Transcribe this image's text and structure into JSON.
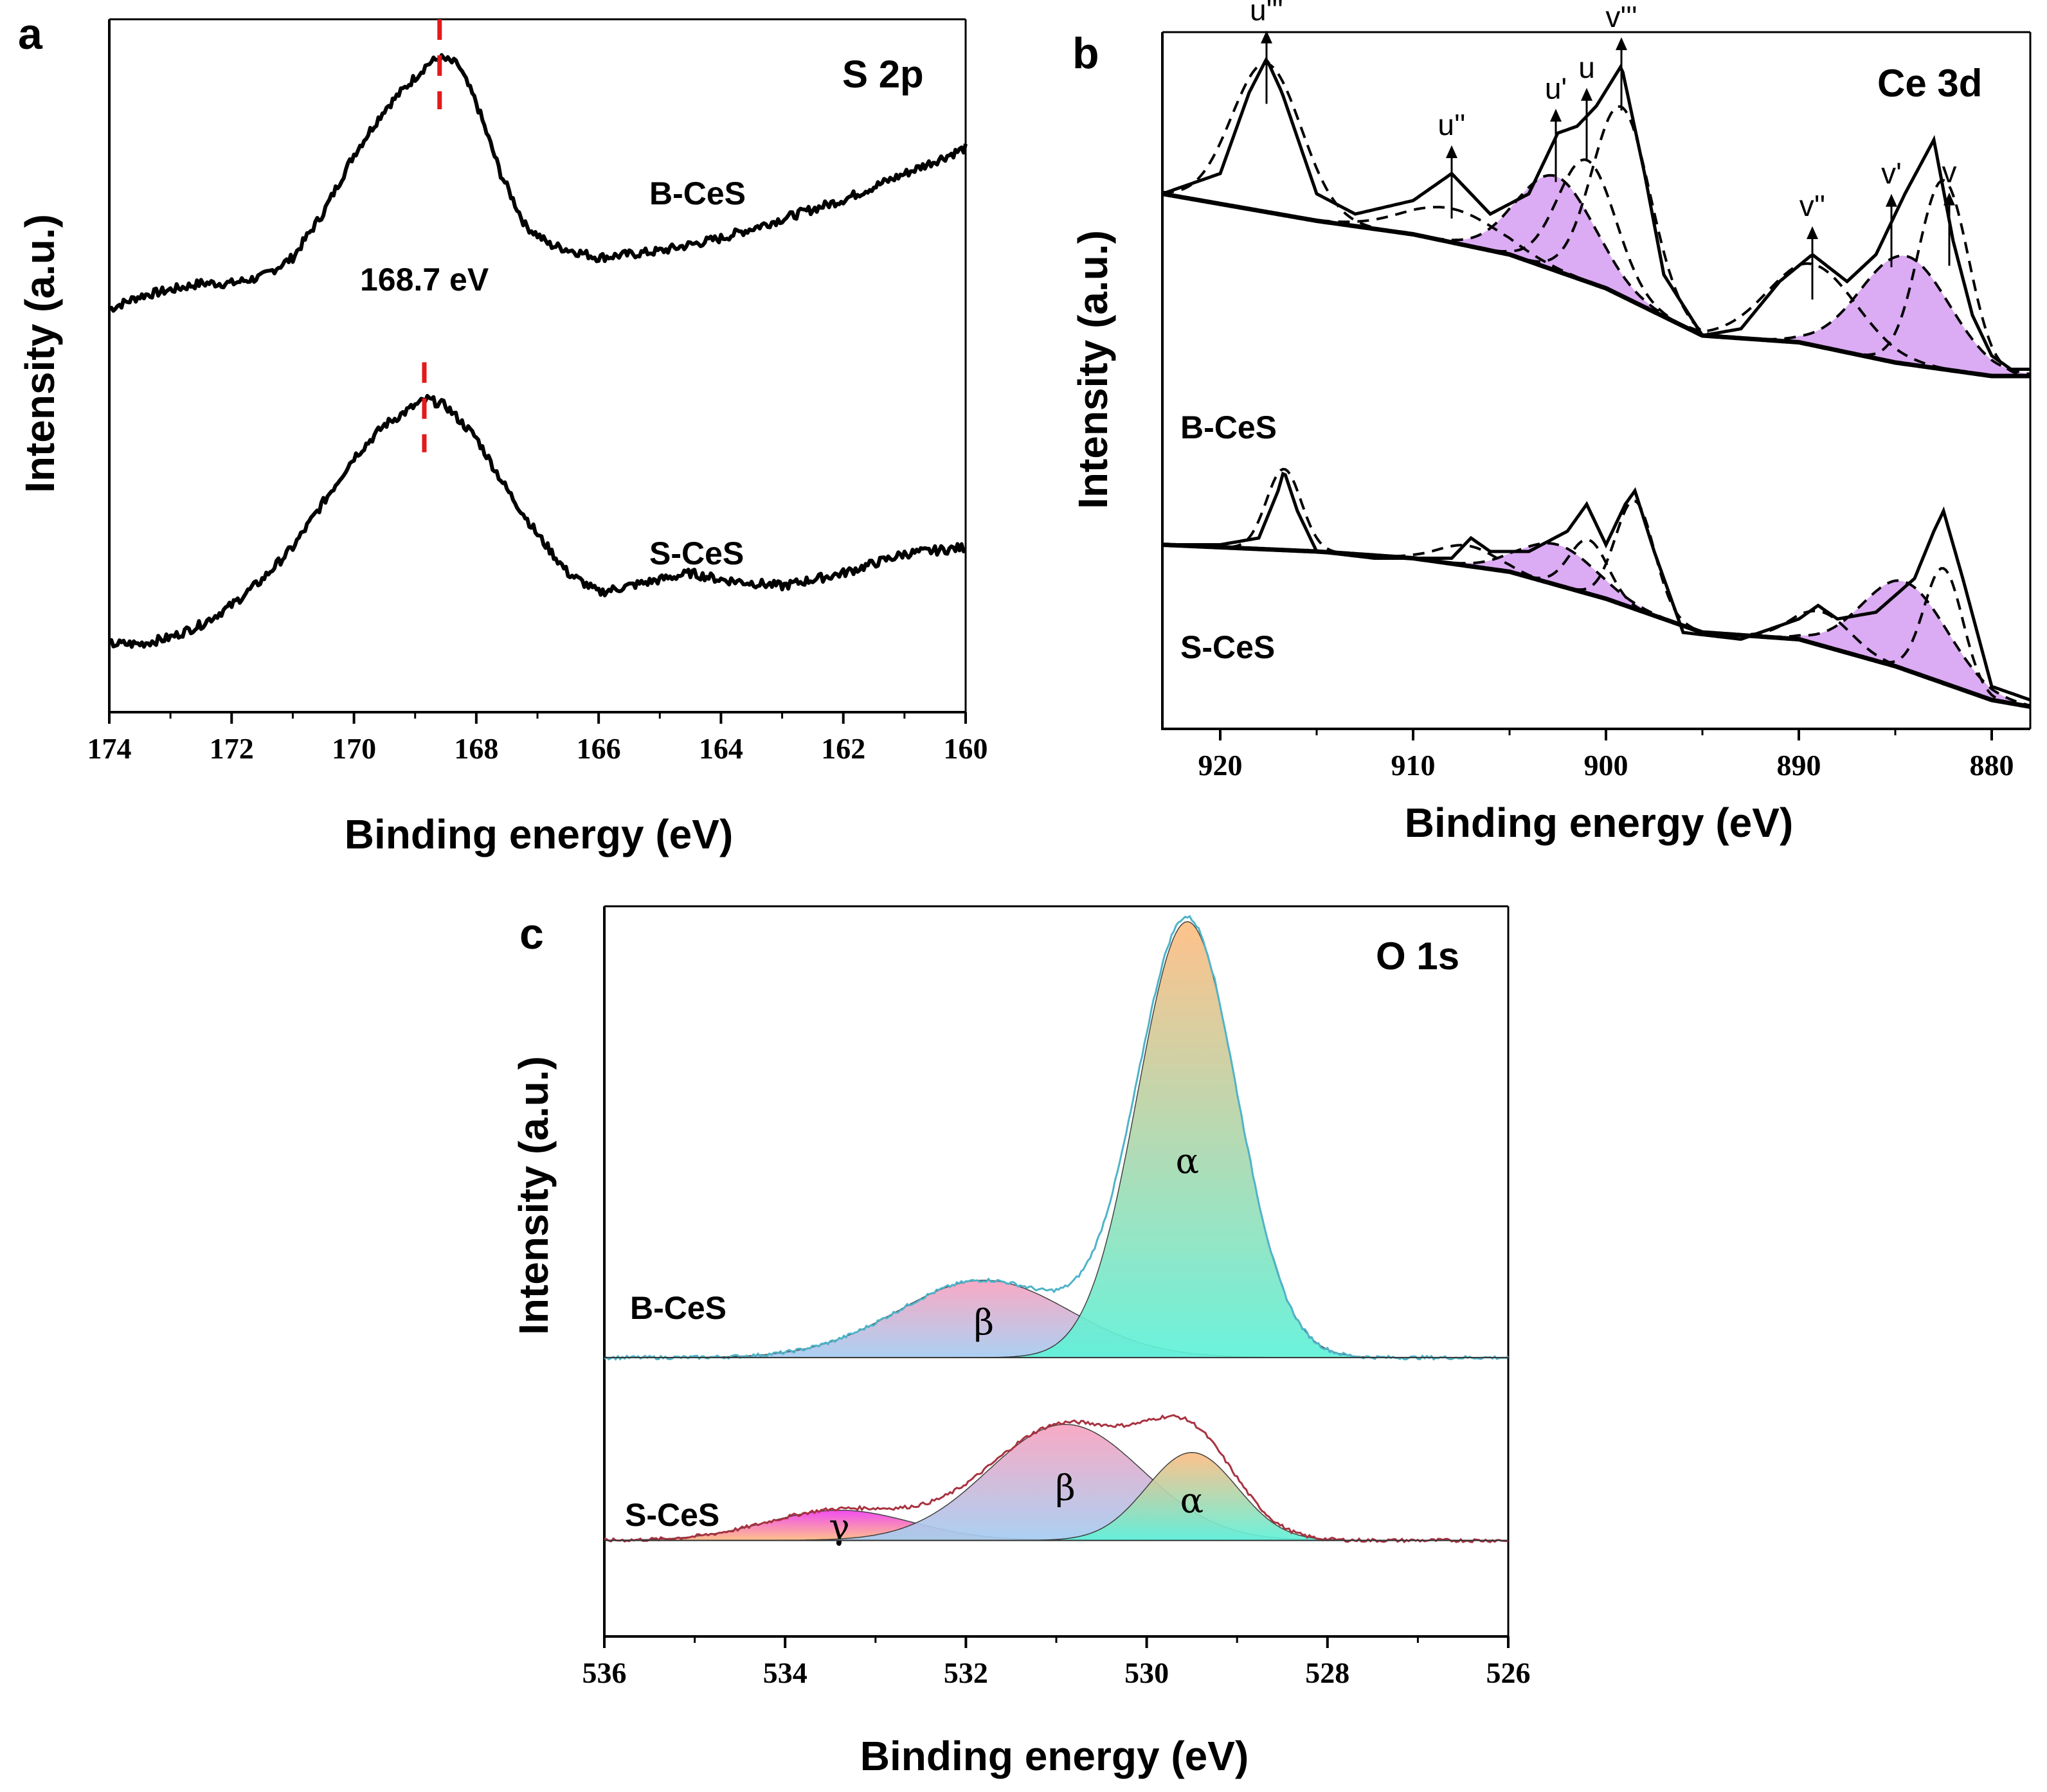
{
  "figure": {
    "panel_labels": [
      "a",
      "b",
      "c"
    ]
  },
  "chart_data": [
    {
      "type": "line",
      "panel": "a",
      "title": "S 2p",
      "xlabel": "Binding energy (eV)",
      "ylabel": "Intensity (a.u.)",
      "xlim": [
        174,
        160
      ],
      "xticks": [
        174,
        172,
        170,
        168,
        166,
        164,
        162,
        160
      ],
      "ylim": [
        0,
        100
      ],
      "annotation": {
        "text": "168.7 eV",
        "x": 168.7
      },
      "marker_color": "#e31a1c",
      "series": [
        {
          "name": "B-CeS",
          "label_x": 167.3,
          "label_y": 79,
          "marker_x": 168.6,
          "x": [
            174,
            173.5,
            173,
            172.5,
            172,
            171.5,
            171,
            170.5,
            170,
            169.5,
            169,
            168.8,
            168.6,
            168.3,
            168,
            167.6,
            167.2,
            166.8,
            166.4,
            166,
            165,
            164,
            163,
            162,
            161,
            160
          ],
          "y": [
            58,
            60,
            61,
            62,
            62,
            63,
            66,
            73,
            82,
            89,
            94,
            96,
            97,
            96,
            90,
            79,
            71,
            68,
            67,
            66,
            67,
            69,
            72,
            75,
            79,
            83
          ]
        },
        {
          "name": "S-CeS",
          "label_x": 167.3,
          "label_y": 24,
          "marker_x": 168.85,
          "x": [
            174,
            173.5,
            173,
            172.5,
            172,
            171.5,
            171,
            170.5,
            170,
            169.5,
            169,
            168.8,
            168.5,
            168,
            167.5,
            167,
            166.5,
            166,
            165.5,
            165,
            164.5,
            164,
            163,
            162,
            161,
            160
          ],
          "y": [
            6,
            6,
            7,
            9,
            12,
            16,
            21,
            28,
            35,
            40,
            43,
            44,
            43,
            38,
            30,
            23,
            17,
            14,
            15,
            16,
            17,
            16,
            15,
            17,
            20,
            21
          ]
        }
      ]
    },
    {
      "type": "line",
      "panel": "b",
      "title": "Ce 3d",
      "xlabel": "Binding energy (eV)",
      "ylabel": "Intensity (a.u.)",
      "xlim": [
        923,
        878
      ],
      "xticks": [
        920,
        910,
        900,
        890,
        880
      ],
      "ylim": [
        0,
        100
      ],
      "fill_color": "#d9a6f2",
      "peak_labels": [
        {
          "text": "u'''",
          "x": 917.6
        },
        {
          "text": "u''",
          "x": 908.0
        },
        {
          "text": "u'",
          "x": 902.6
        },
        {
          "text": "u",
          "x": 901.0
        },
        {
          "text": "v'''",
          "x": 899.2
        },
        {
          "text": "v''",
          "x": 889.3
        },
        {
          "text": "v'",
          "x": 885.2
        },
        {
          "text": "v",
          "x": 882.2
        }
      ],
      "series": [
        {
          "name": "B-CeS",
          "offset": 50,
          "x": [
            923,
            920,
            918.5,
            917.6,
            916.8,
            915,
            913,
            910,
            908,
            906,
            904,
            902.5,
            901.5,
            900.5,
            899.2,
            898,
            897,
            895,
            893,
            891,
            889.3,
            887.5,
            886,
            884.5,
            883,
            882,
            881,
            880,
            879,
            878
          ],
          "y": [
            27,
            30,
            42,
            47,
            42,
            27,
            24,
            26,
            30,
            24,
            27,
            36,
            37,
            40,
            46,
            30,
            15,
            6,
            7,
            14,
            18,
            14,
            18,
            27,
            35,
            20,
            9,
            3,
            1,
            1
          ],
          "background": {
            "x": [
              923,
              915,
              910,
              905,
              900,
              895,
              890,
              885,
              880,
              878
            ],
            "y": [
              27,
              23,
              21,
              18,
              13,
              6,
              5,
              2,
              0,
              0
            ]
          },
          "components": [
            {
              "name": "u'''",
              "center": 917.6,
              "height": 22,
              "width": 1.8,
              "fill": false
            },
            {
              "name": "u''",
              "center": 908.0,
              "height": 5,
              "width": 2.5,
              "fill": false
            },
            {
              "name": "u'",
              "center": 902.6,
              "height": 14,
              "width": 2.0,
              "fill": true
            },
            {
              "name": "u",
              "center": 901.0,
              "height": 18,
              "width": 1.5,
              "fill": false
            },
            {
              "name": "v'''",
              "center": 899.2,
              "height": 28,
              "width": 1.5,
              "fill": false
            },
            {
              "name": "v''",
              "center": 889.3,
              "height": 12,
              "width": 2.3,
              "fill": false
            },
            {
              "name": "v'",
              "center": 884.5,
              "height": 16,
              "width": 2.3,
              "fill": true
            },
            {
              "name": "v",
              "center": 882.5,
              "height": 28,
              "width": 1.3,
              "fill": false
            }
          ]
        },
        {
          "name": "S-CeS",
          "offset": 0,
          "x": [
            923,
            920,
            918,
            917,
            916.7,
            916,
            915,
            912,
            910,
            908,
            907,
            906,
            904,
            902,
            901,
            900,
            899,
            898.5,
            897.5,
            896,
            893,
            890,
            889,
            888,
            886,
            884,
            883,
            882.5,
            881.5,
            880,
            878
          ],
          "y": [
            25,
            25,
            26,
            33,
            36,
            30,
            24,
            23,
            23,
            23,
            26,
            24,
            24,
            27,
            31,
            25,
            31,
            33,
            24,
            12,
            11,
            14,
            16,
            14,
            15,
            20,
            27,
            30,
            20,
            4,
            2
          ],
          "background": {
            "x": [
              923,
              915,
              910,
              905,
              900,
              895,
              890,
              885,
              880,
              878
            ],
            "y": [
              25,
              24,
              23,
              21,
              17,
              12,
              11,
              7,
              2,
              1
            ]
          },
          "components": [
            {
              "name": "u'''",
              "center": 916.7,
              "height": 12,
              "width": 0.9,
              "fill": false
            },
            {
              "name": "u''",
              "center": 907.2,
              "height": 3,
              "width": 1.5,
              "fill": false
            },
            {
              "name": "u'",
              "center": 902.5,
              "height": 6,
              "width": 2.0,
              "fill": true
            },
            {
              "name": "u",
              "center": 900.9,
              "height": 8,
              "width": 1.0,
              "fill": false
            },
            {
              "name": "v'''",
              "center": 898.5,
              "height": 16,
              "width": 1.0,
              "fill": false
            },
            {
              "name": "v''",
              "center": 888.8,
              "height": 5,
              "width": 1.5,
              "fill": false
            },
            {
              "name": "v'",
              "center": 884.5,
              "height": 13,
              "width": 2.2,
              "fill": true
            },
            {
              "name": "v",
              "center": 882.5,
              "height": 17,
              "width": 1.0,
              "fill": false
            }
          ]
        }
      ]
    },
    {
      "type": "area",
      "panel": "c",
      "title": "O 1s",
      "xlabel": "Binding energy (eV)",
      "ylabel": "Intensity (a.u.)",
      "xlim": [
        536,
        526
      ],
      "xticks": [
        536,
        534,
        532,
        530,
        528,
        526
      ],
      "ylim": [
        0,
        100
      ],
      "colors": {
        "envelope": "#4fb3c8",
        "envelope_s": "#a83240",
        "orange": "#ffbd82",
        "cyan": "#5ff2d9",
        "pink": "#f9a3c0",
        "blue": "#a5cdf2",
        "magenta": "#f03ef0",
        "tail": "#333333"
      },
      "series": [
        {
          "name": "B-CeS",
          "baseline": 36,
          "components": [
            {
              "label": "β",
              "center": 531.8,
              "height": 11,
              "width": 0.95
            },
            {
              "label": "α",
              "center": 529.55,
              "height": 62,
              "width": 0.55
            }
          ]
        },
        {
          "name": "S-CeS",
          "baseline": 10,
          "components": [
            {
              "label": "γ",
              "center": 533.4,
              "height": 4.3,
              "width": 0.8
            },
            {
              "label": "β",
              "center": 530.9,
              "height": 16.5,
              "width": 0.85
            },
            {
              "label": "α",
              "center": 529.5,
              "height": 12.5,
              "width": 0.5
            }
          ]
        }
      ]
    }
  ]
}
